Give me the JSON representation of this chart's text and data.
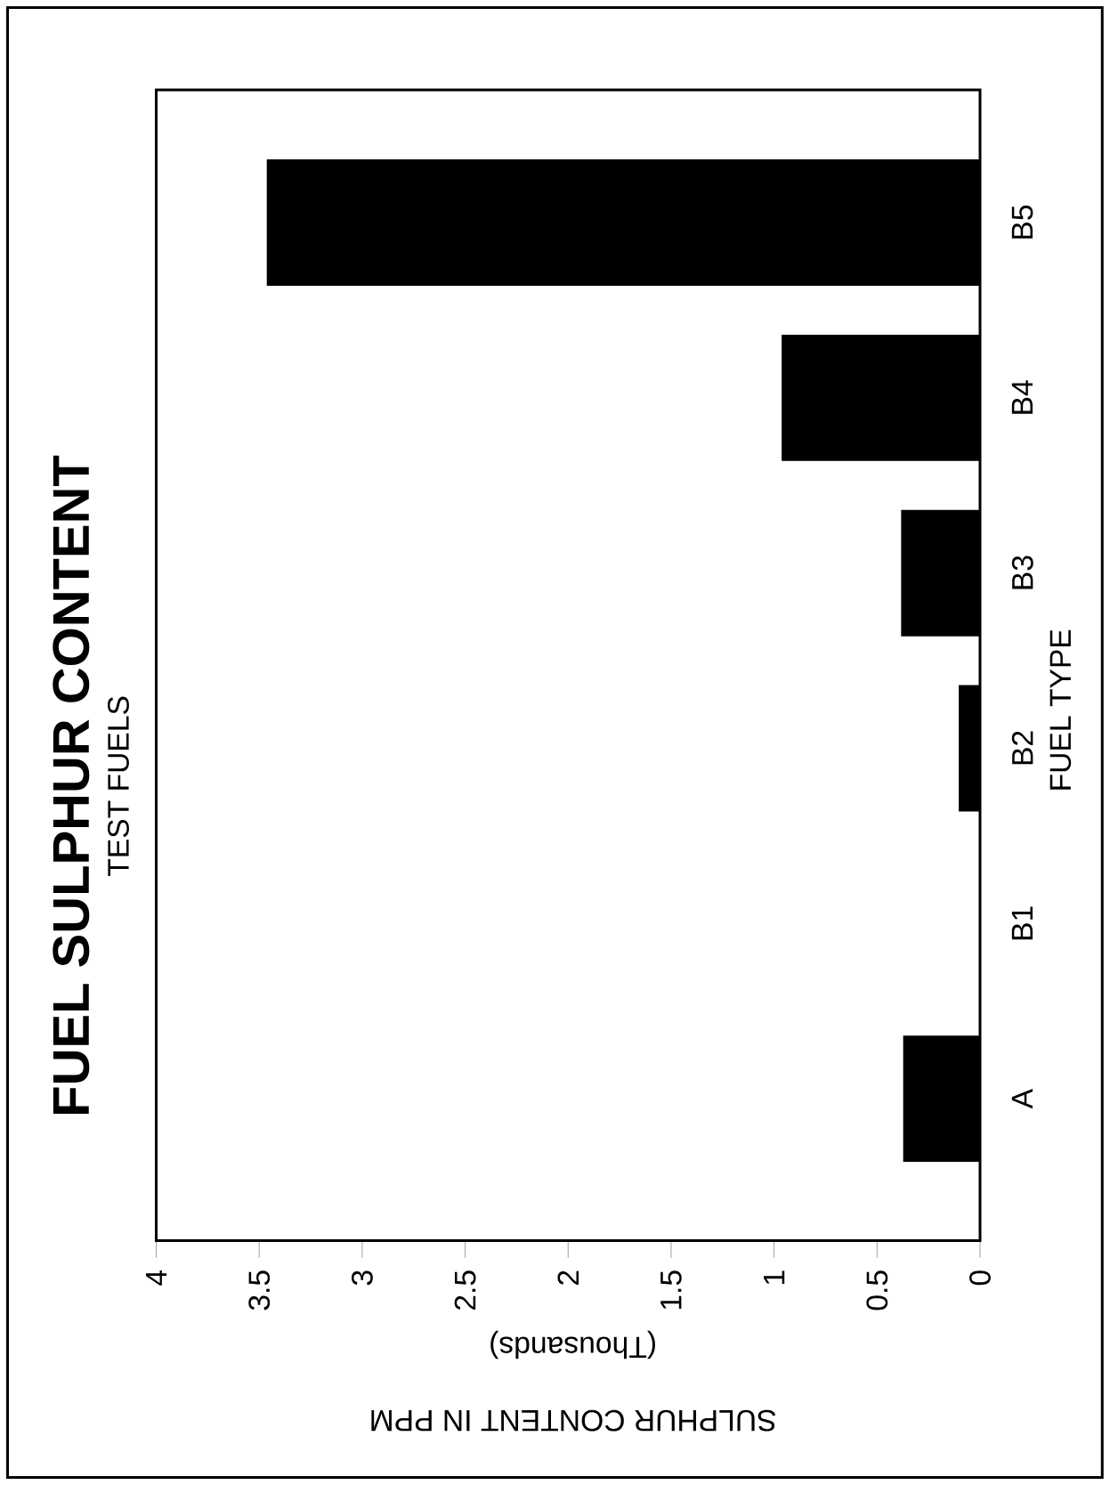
{
  "chart_data": {
    "type": "bar",
    "orientation": "horizontal",
    "title": "FUEL SULPHUR CONTENT",
    "subtitle": "TEST FUELS",
    "xlabel": "SULPHUR CONTENT IN PPM",
    "ylabel": "FUEL TYPE",
    "annotations": [
      "(Thousands)"
    ],
    "categories": [
      "B5",
      "B4",
      "B3",
      "B2",
      "B1",
      "A"
    ],
    "values": [
      3.46,
      0.96,
      0.38,
      0.1,
      0,
      0.37
    ],
    "color": "#000000",
    "xlim": [
      4,
      0
    ],
    "xticks": [
      4,
      3.5,
      3,
      2.5,
      2,
      1.5,
      1,
      0.5,
      0
    ],
    "grid": false
  }
}
